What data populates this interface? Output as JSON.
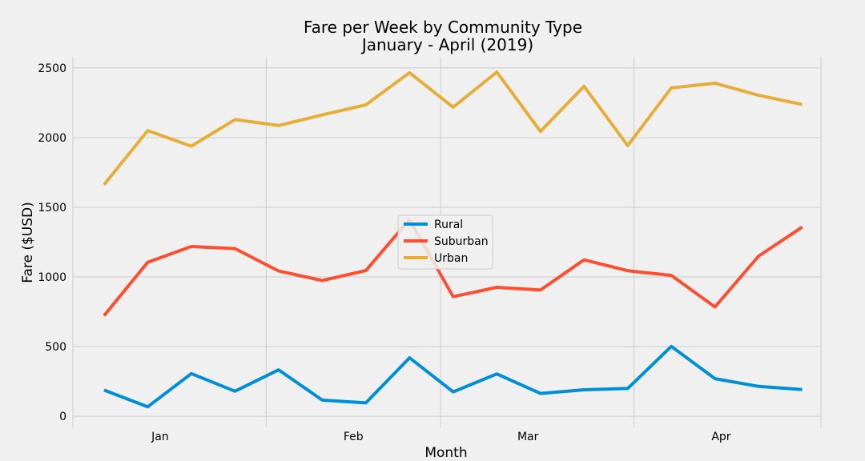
{
  "chart_data": {
    "type": "line",
    "title": "Fare per Week by Community Type",
    "subtitle": "January - April (2019)",
    "xlabel": "Month",
    "ylabel": "Fare ($USD)",
    "x_start": "2019-01-06",
    "x_end": "2019-04-28",
    "xlim": [
      "2019-01-01",
      "2019-05-01"
    ],
    "ylim": [
      -80,
      2580
    ],
    "yticks": [
      0,
      500,
      1000,
      1500,
      2000,
      2500
    ],
    "x_month_ticks": [
      {
        "label": "Jan",
        "date": "2019-01-15"
      },
      {
        "label": "Feb",
        "date": "2019-02-15"
      },
      {
        "label": "Mar",
        "date": "2019-03-15"
      },
      {
        "label": "Apr",
        "date": "2019-04-15"
      }
    ],
    "grid": true,
    "legend_position": "center",
    "series": [
      {
        "name": "Rural",
        "color": "#008fd5",
        "values": [
          187.92,
          67.65,
          306.0,
          179.69,
          333.08,
          115.8,
          95.82,
          419.06,
          175.14,
          303.94,
          163.39,
          189.76,
          199.42,
          501.24,
          269.79,
          214.14,
          191.85
        ]
      },
      {
        "name": "Suburban",
        "color": "#fc4f30",
        "values": [
          721.6,
          1105.13,
          1218.2,
          1203.28,
          1042.79,
          974.34,
          1045.5,
          1412.74,
          858.46,
          925.27,
          905.87,
          1122.2,
          1045.06,
          1010.73,
          784.82,
          1149.27,
          1357.75
        ]
      },
      {
        "name": "Urban",
        "color": "#e5ae38",
        "values": [
          1661.68,
          2050.43,
          1939.02,
          2129.51,
          2086.94,
          2162.64,
          2235.07,
          2466.29,
          2218.2,
          2470.93,
          2044.42,
          2368.37,
          1942.77,
          2356.7,
          2390.72,
          2303.8,
          2238.29
        ]
      }
    ]
  }
}
